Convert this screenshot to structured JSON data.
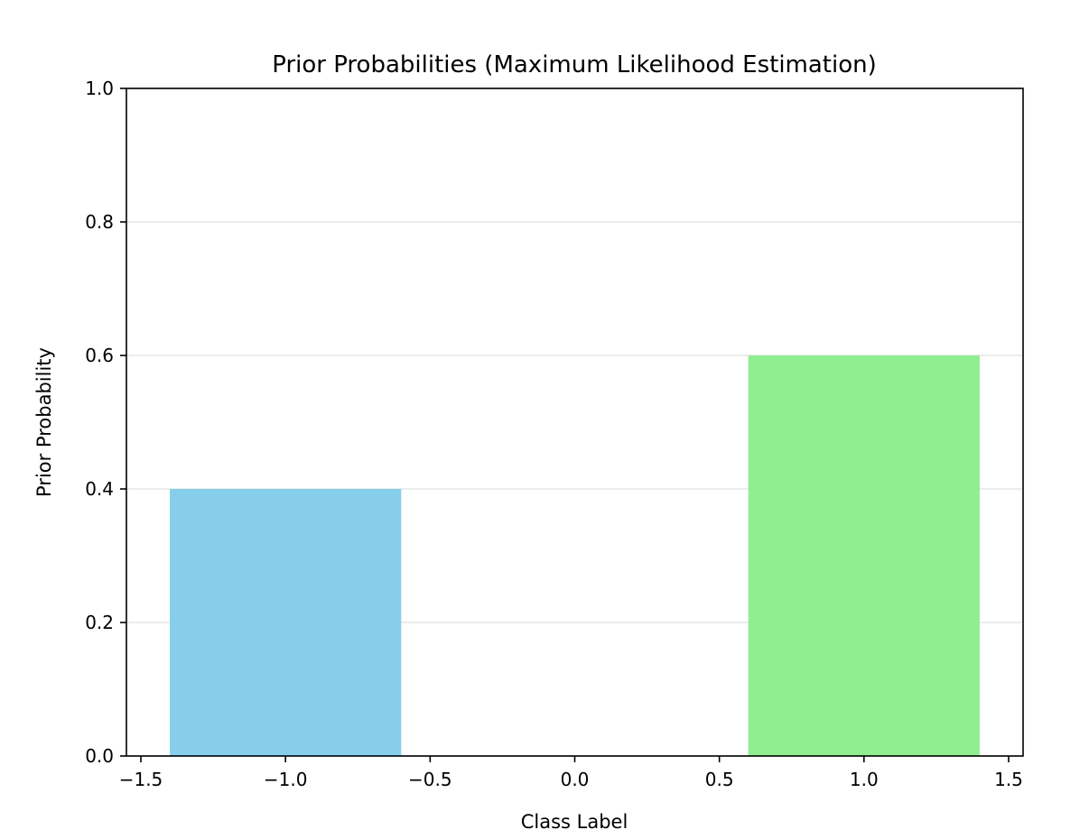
{
  "chart_data": {
    "type": "bar",
    "title": "Prior Probabilities (Maximum Likelihood Estimation)",
    "xlabel": "Class Label",
    "ylabel": "Prior Probability",
    "xlim": [
      -1.55,
      1.55
    ],
    "ylim": [
      0,
      1
    ],
    "xticks": [
      -1.5,
      -1.0,
      -0.5,
      0.0,
      0.5,
      1.0,
      1.5
    ],
    "xtick_labels": [
      "−1.5",
      "−1.0",
      "−0.5",
      "0.0",
      "0.5",
      "1.0",
      "1.5"
    ],
    "yticks": [
      0.0,
      0.2,
      0.4,
      0.6,
      0.8,
      1.0
    ],
    "ytick_labels": [
      "0.0",
      "0.2",
      "0.4",
      "0.6",
      "0.8",
      "1.0"
    ],
    "grid": {
      "axis": "y",
      "on": true,
      "color": "#e6e6e6"
    },
    "bar_width": 0.8,
    "bars": [
      {
        "x": -1,
        "value": 0.4,
        "color": "#87ceeb"
      },
      {
        "x": 1,
        "value": 0.6,
        "color": "#90ee90"
      }
    ]
  }
}
